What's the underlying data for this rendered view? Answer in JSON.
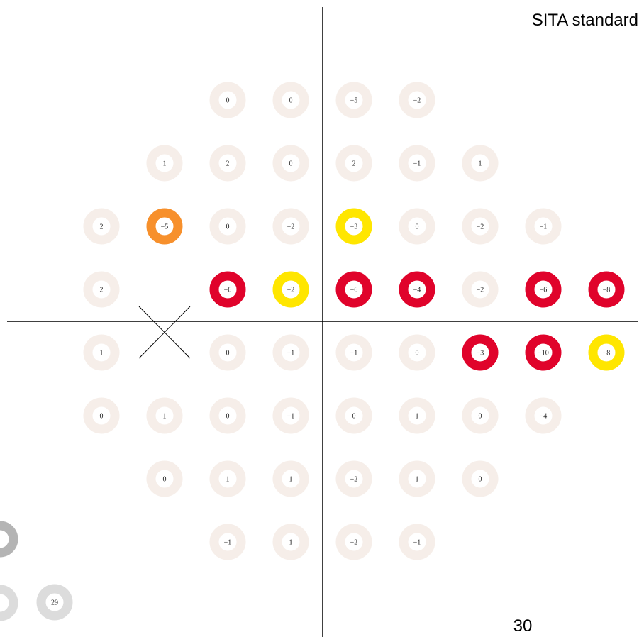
{
  "title": "SITA standard",
  "footer": "30",
  "colors": {
    "n": "#f6eee9",
    "o": "#f7902c",
    "y": "#ffe600",
    "r": "#e0032b"
  },
  "rows": [
    [
      null,
      null,
      {
        "label": "0",
        "level": "n"
      },
      {
        "label": "0",
        "level": "n"
      },
      {
        "label": "−5",
        "level": "n"
      },
      {
        "label": "−2",
        "level": "n"
      },
      null,
      null,
      null
    ],
    [
      null,
      {
        "label": "1",
        "level": "n"
      },
      {
        "label": "2",
        "level": "n"
      },
      {
        "label": "0",
        "level": "n"
      },
      {
        "label": "2",
        "level": "n"
      },
      {
        "label": "−1",
        "level": "n"
      },
      {
        "label": "1",
        "level": "n"
      },
      null,
      null
    ],
    [
      {
        "label": "2",
        "level": "n"
      },
      {
        "label": "−5",
        "level": "o"
      },
      {
        "label": "0",
        "level": "n"
      },
      {
        "label": "−2",
        "level": "n"
      },
      {
        "label": "−3",
        "level": "y"
      },
      {
        "label": "0",
        "level": "n"
      },
      {
        "label": "−2",
        "level": "n"
      },
      {
        "label": "−1",
        "level": "n"
      },
      null
    ],
    [
      {
        "label": "2",
        "level": "n"
      },
      null,
      {
        "label": "−6",
        "level": "r"
      },
      {
        "label": "−2",
        "level": "y"
      },
      {
        "label": "−6",
        "level": "r"
      },
      {
        "label": "−4",
        "level": "r"
      },
      {
        "label": "−2",
        "level": "n"
      },
      {
        "label": "−6",
        "level": "r"
      },
      {
        "label": "−8",
        "level": "r"
      }
    ],
    [
      {
        "label": "1",
        "level": "n"
      },
      null,
      {
        "label": "0",
        "level": "n"
      },
      {
        "label": "−1",
        "level": "n"
      },
      {
        "label": "−1",
        "level": "n"
      },
      {
        "label": "0",
        "level": "n"
      },
      {
        "label": "−3",
        "level": "r"
      },
      {
        "label": "−10",
        "level": "r"
      },
      {
        "label": "−8",
        "level": "y"
      }
    ],
    [
      {
        "label": "0",
        "level": "n"
      },
      {
        "label": "1",
        "level": "n"
      },
      {
        "label": "0",
        "level": "n"
      },
      {
        "label": "−1",
        "level": "n"
      },
      {
        "label": "0",
        "level": "n"
      },
      {
        "label": "1",
        "level": "n"
      },
      {
        "label": "0",
        "level": "n"
      },
      {
        "label": "−4",
        "level": "n"
      },
      null
    ],
    [
      null,
      {
        "label": "0",
        "level": "n"
      },
      {
        "label": "1",
        "level": "n"
      },
      {
        "label": "1",
        "level": "n"
      },
      {
        "label": "−2",
        "level": "n"
      },
      {
        "label": "1",
        "level": "n"
      },
      {
        "label": "0",
        "level": "n"
      },
      null,
      null
    ],
    [
      null,
      null,
      {
        "label": "−1",
        "level": "n"
      },
      {
        "label": "1",
        "level": "n"
      },
      {
        "label": "−2",
        "level": "n"
      },
      {
        "label": "−1",
        "level": "n"
      },
      null,
      null,
      null
    ]
  ],
  "extras": [
    {
      "label": null,
      "color": "#b4b4b4"
    },
    {
      "label": null,
      "color": "#dcdcdc"
    },
    {
      "label": "29",
      "color": "#dcdcdc"
    }
  ]
}
